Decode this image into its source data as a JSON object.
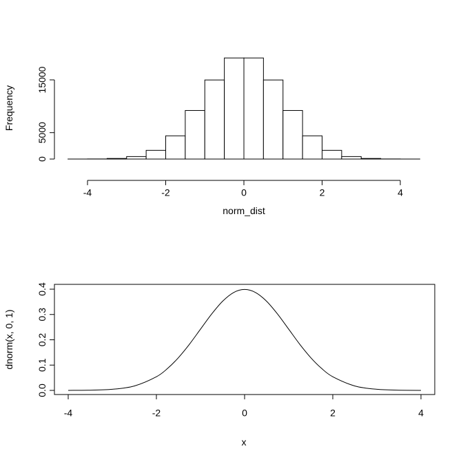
{
  "chart_data": [
    {
      "type": "bar",
      "title": "",
      "xlabel": "norm_dist",
      "ylabel": "Frequency",
      "xlim": [
        -4.5,
        4.5
      ],
      "ylim": [
        0,
        19500
      ],
      "x_ticks": [
        -4,
        -2,
        0,
        2,
        4
      ],
      "x_tick_labels": [
        "-4",
        "-2",
        "0",
        "2",
        "4"
      ],
      "y_ticks": [
        0,
        5000,
        15000
      ],
      "y_tick_labels": [
        "0",
        "5000",
        "15000"
      ],
      "bins": [
        {
          "from": -4.5,
          "to": -4.0,
          "count": 3
        },
        {
          "from": -4.0,
          "to": -3.5,
          "count": 20
        },
        {
          "from": -3.5,
          "to": -3.0,
          "count": 110
        },
        {
          "from": -3.0,
          "to": -2.5,
          "count": 470
        },
        {
          "from": -2.5,
          "to": -2.0,
          "count": 1650
        },
        {
          "from": -2.0,
          "to": -1.5,
          "count": 4400
        },
        {
          "from": -1.5,
          "to": -1.0,
          "count": 9200
        },
        {
          "from": -1.0,
          "to": -0.5,
          "count": 14980
        },
        {
          "from": -0.5,
          "to": 0.0,
          "count": 19150
        },
        {
          "from": 0.0,
          "to": 0.5,
          "count": 19150
        },
        {
          "from": 0.5,
          "to": 1.0,
          "count": 14980
        },
        {
          "from": 1.0,
          "to": 1.5,
          "count": 9200
        },
        {
          "from": 1.5,
          "to": 2.0,
          "count": 4400
        },
        {
          "from": 2.0,
          "to": 2.5,
          "count": 1650
        },
        {
          "from": 2.5,
          "to": 3.0,
          "count": 470
        },
        {
          "from": 3.0,
          "to": 3.5,
          "count": 110
        },
        {
          "from": 3.5,
          "to": 4.0,
          "count": 20
        },
        {
          "from": 4.0,
          "to": 4.5,
          "count": 3
        }
      ]
    },
    {
      "type": "line",
      "title": "",
      "xlabel": "x",
      "ylabel": "dnorm(x, 0, 1)",
      "xlim": [
        -4,
        4
      ],
      "ylim": [
        0,
        0.4
      ],
      "x_ticks": [
        -4,
        -2,
        0,
        2,
        4
      ],
      "x_tick_labels": [
        "-4",
        "-2",
        "0",
        "2",
        "4"
      ],
      "y_ticks": [
        0.0,
        0.1,
        0.2,
        0.3,
        0.4
      ],
      "y_tick_labels": [
        "0.0",
        "0.1",
        "0.2",
        "0.3",
        "0.4"
      ],
      "box": true,
      "series": [
        {
          "x": [
            -4.0,
            -3.5,
            -3.0,
            -2.5,
            -2.0,
            -1.75,
            -1.5,
            -1.25,
            -1.0,
            -0.75,
            -0.5,
            -0.25,
            0.0,
            0.25,
            0.5,
            0.75,
            1.0,
            1.25,
            1.5,
            1.75,
            2.0,
            2.5,
            3.0,
            3.5,
            4.0
          ],
          "y": [
            0.0001,
            0.0009,
            0.0044,
            0.0175,
            0.054,
            0.0863,
            0.1295,
            0.1826,
            0.242,
            0.3011,
            0.3521,
            0.3867,
            0.3989,
            0.3867,
            0.3521,
            0.3011,
            0.242,
            0.1826,
            0.1295,
            0.0863,
            0.054,
            0.0175,
            0.0044,
            0.0009,
            0.0001
          ]
        }
      ]
    }
  ]
}
